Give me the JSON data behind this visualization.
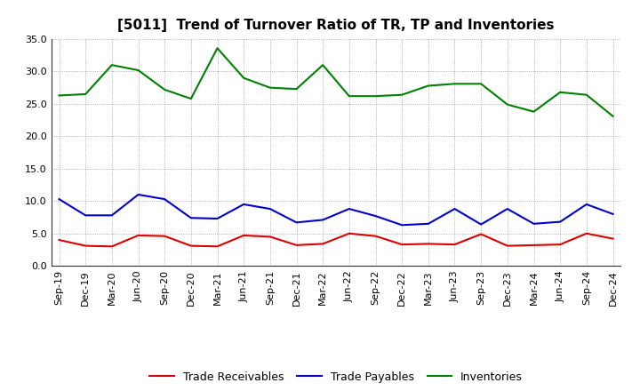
{
  "title": "[5011]  Trend of Turnover Ratio of TR, TP and Inventories",
  "x_labels": [
    "Sep-19",
    "Dec-19",
    "Mar-20",
    "Jun-20",
    "Sep-20",
    "Dec-20",
    "Mar-21",
    "Jun-21",
    "Sep-21",
    "Dec-21",
    "Mar-22",
    "Jun-22",
    "Sep-22",
    "Dec-22",
    "Mar-23",
    "Jun-23",
    "Sep-23",
    "Dec-23",
    "Mar-24",
    "Jun-24",
    "Sep-24",
    "Dec-24"
  ],
  "trade_receivables": [
    4.0,
    3.1,
    3.0,
    4.7,
    4.6,
    3.1,
    3.0,
    4.7,
    4.5,
    3.2,
    3.4,
    5.0,
    4.6,
    3.3,
    3.4,
    3.3,
    4.9,
    3.1,
    3.2,
    3.3,
    5.0,
    4.2
  ],
  "trade_payables": [
    10.3,
    7.8,
    7.8,
    11.0,
    10.3,
    7.4,
    7.3,
    9.5,
    8.8,
    6.7,
    7.1,
    8.8,
    7.7,
    6.3,
    6.5,
    8.8,
    6.4,
    8.8,
    6.5,
    6.8,
    9.5,
    8.0
  ],
  "inventories": [
    26.3,
    26.5,
    31.0,
    30.2,
    27.2,
    25.8,
    33.6,
    29.0,
    27.5,
    27.3,
    31.0,
    26.2,
    26.2,
    26.4,
    27.8,
    28.1,
    28.1,
    24.9,
    23.8,
    26.8,
    26.4,
    23.1
  ],
  "tr_color": "#dd0000",
  "tp_color": "#0000cc",
  "inv_color": "#008000",
  "tr_label": "Trade Receivables",
  "tp_label": "Trade Payables",
  "inv_label": "Inventories",
  "ylim": [
    0.0,
    35.0
  ],
  "yticks": [
    0.0,
    5.0,
    10.0,
    15.0,
    20.0,
    25.0,
    30.0,
    35.0
  ],
  "bg_color": "#ffffff",
  "grid_color": "#999999",
  "title_fontsize": 11,
  "legend_fontsize": 9,
  "tick_fontsize": 8
}
